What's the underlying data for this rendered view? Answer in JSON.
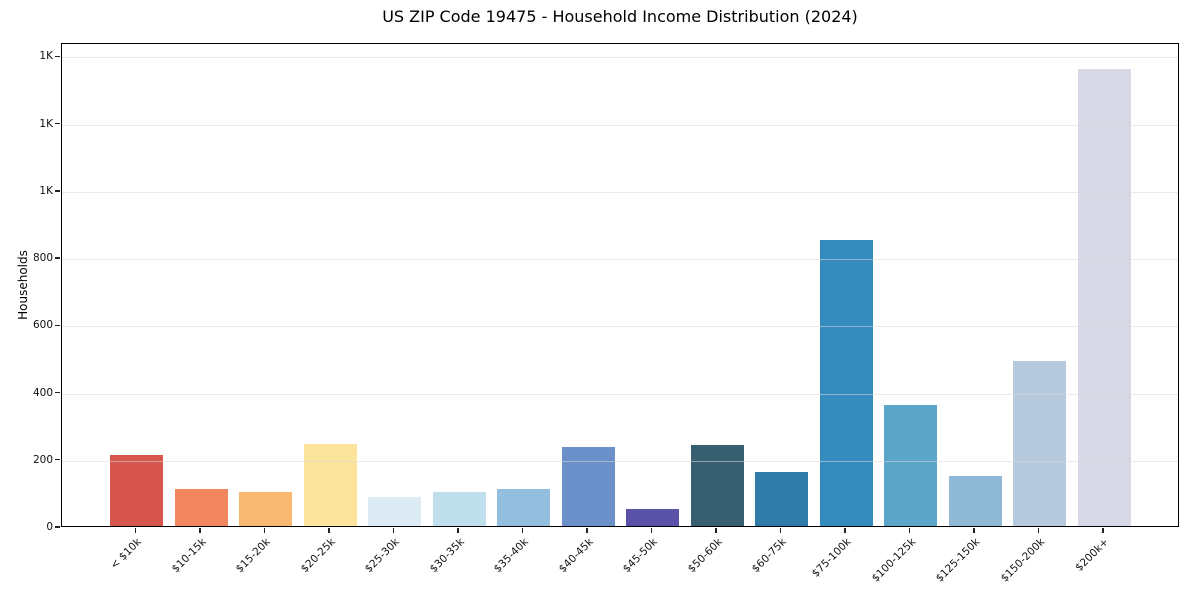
{
  "title": "US ZIP Code 19475 - Household Income Distribution (2024)",
  "chart_data": {
    "type": "bar",
    "title": "US ZIP Code 19475 - Household Income Distribution (2024)",
    "xlabel": "",
    "ylabel": "Households",
    "categories": [
      "< $10k",
      "$10-15k",
      "$15-20k",
      "$20-25k",
      "$25-30k",
      "$30-35k",
      "$35-40k",
      "$40-45k",
      "$45-50k",
      "$50-60k",
      "$60-75k",
      "$75-100k",
      "$100-125k",
      "$125-150k",
      "$150-200k",
      "$200k+"
    ],
    "values": [
      210,
      110,
      100,
      245,
      85,
      100,
      110,
      235,
      50,
      240,
      160,
      850,
      360,
      150,
      490,
      1360
    ],
    "bar_colors": [
      "#d6564e",
      "#f2875f",
      "#f9b871",
      "#fce49c",
      "#ddecf4",
      "#c0dfec",
      "#93bedd",
      "#6c90ca",
      "#5952a8",
      "#36606f",
      "#2f7cab",
      "#348bbe",
      "#5ba5c9",
      "#8fb8d7",
      "#b7c9dd",
      "#d7dae6"
    ],
    "ylim": [
      0,
      1440
    ],
    "yticks": [
      {
        "value": 0,
        "label": "0"
      },
      {
        "value": 200,
        "label": "200"
      },
      {
        "value": 400,
        "label": "400"
      },
      {
        "value": 600,
        "label": "600"
      },
      {
        "value": 800,
        "label": "800"
      },
      {
        "value": 1000,
        "label": "1K"
      },
      {
        "value": 1200,
        "label": "1K"
      },
      {
        "value": 1400,
        "label": "1K"
      }
    ],
    "grid": "horizontal",
    "legend_position": "none",
    "background_color": "#ffffff"
  }
}
